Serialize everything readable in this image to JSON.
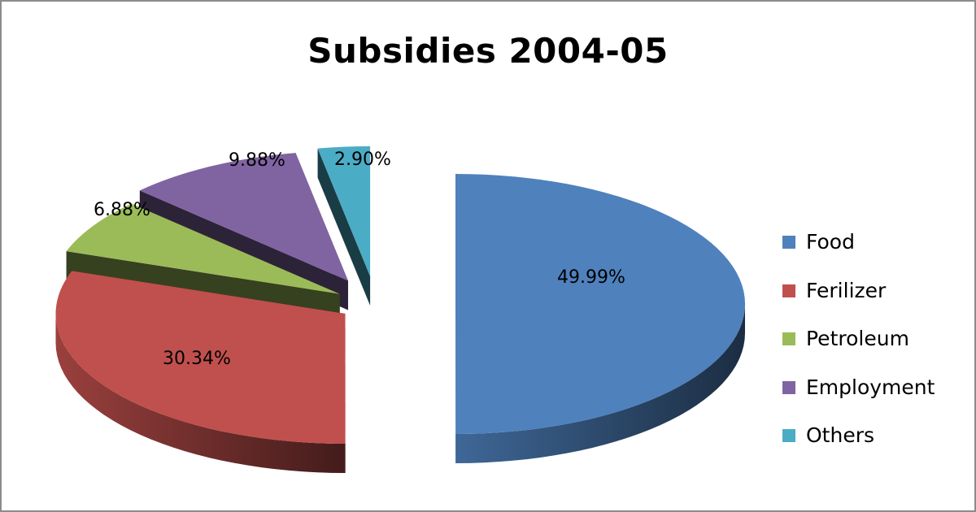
{
  "chart_data": {
    "type": "pie",
    "title": "Subsidies 2004-05",
    "legend_position": "right",
    "categories": [
      "Food",
      "Ferilizer",
      "Petroleum",
      "Employment",
      "Others"
    ],
    "values": [
      49.99,
      30.34,
      6.88,
      9.88,
      2.9
    ],
    "data_labels": [
      "49.99%",
      "30.34%",
      "6.88%",
      "9.88%",
      "2.90%"
    ],
    "colors": [
      "#4f81bd",
      "#c0504d",
      "#9bbb59",
      "#8064a2",
      "#4bacc6"
    ],
    "style": "3D exploded pie"
  }
}
